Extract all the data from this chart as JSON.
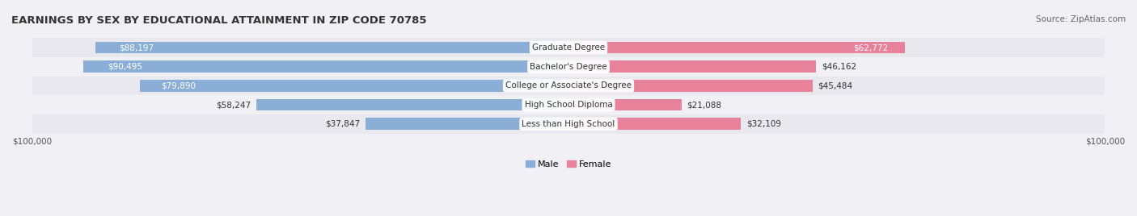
{
  "title": "EARNINGS BY SEX BY EDUCATIONAL ATTAINMENT IN ZIP CODE 70785",
  "source": "Source: ZipAtlas.com",
  "categories": [
    "Less than High School",
    "High School Diploma",
    "College or Associate's Degree",
    "Bachelor's Degree",
    "Graduate Degree"
  ],
  "male_values": [
    37847,
    58247,
    79890,
    90495,
    88197
  ],
  "female_values": [
    32109,
    21088,
    45484,
    46162,
    62772
  ],
  "max_value": 100000,
  "male_color": "#8aaed6",
  "female_color": "#e8829a",
  "label_bg_color": "#ffffff",
  "bar_bg_color": "#e8e8ee",
  "row_bg_colors": [
    "#f0f0f5",
    "#e8e8ee"
  ],
  "title_fontsize": 10,
  "label_fontsize": 8,
  "value_fontsize": 8,
  "axis_label_fontsize": 8
}
